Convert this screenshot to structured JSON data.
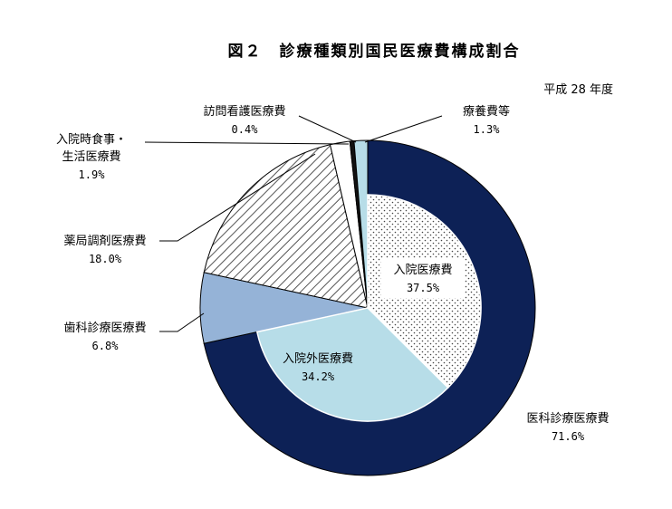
{
  "title": "図２　診療種類別国民医療費構成割合",
  "subtitle": "平成 28 年度",
  "colors": {
    "outer_medical": "#0d2156",
    "dental": "#95b3d7",
    "pharmacy_hatch": "#555555",
    "meals": "#ffffff",
    "nursing": "#111111",
    "care": "#b7dde8",
    "inner_inpatient_dot": "#444444",
    "inner_outpatient": "#b7dde8"
  },
  "chart_data": {
    "type": "pie",
    "variant": "nested-donut",
    "title": "図２　診療種類別国民医療費構成割合",
    "subtitle": "平成 28 年度",
    "unit": "%",
    "outer": [
      {
        "name": "医科診療医療費",
        "value": 71.6,
        "label": "71.6%"
      },
      {
        "name": "歯科診療医療費",
        "value": 6.8,
        "label": "6.8%"
      },
      {
        "name": "薬局調剤医療費",
        "value": 18.0,
        "label": "18.0%"
      },
      {
        "name": "入院時食事・生活医療費",
        "name_lines": [
          "入院時食事・",
          "生活医療費"
        ],
        "value": 1.9,
        "label": "1.9%"
      },
      {
        "name": "訪問看護医療費",
        "value": 0.4,
        "label": "0.4%"
      },
      {
        "name": "療養費等",
        "value": 1.3,
        "label": "1.3%"
      }
    ],
    "inner": [
      {
        "name": "入院医療費",
        "value": 37.5,
        "label": "37.5%"
      },
      {
        "name": "入院外医療費",
        "value": 34.2,
        "label": "34.2%"
      }
    ]
  }
}
